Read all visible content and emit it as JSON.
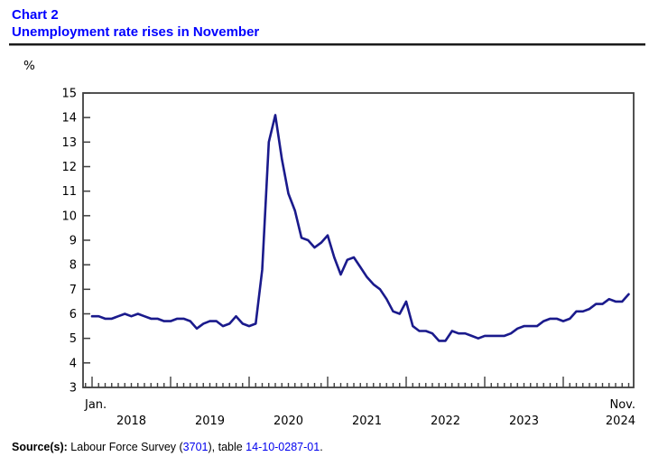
{
  "header": {
    "chart_label": "Chart 2",
    "title": "Unemployment rate rises in November"
  },
  "colors": {
    "title_blue": "#0000ff",
    "link_blue": "#0000ee",
    "line_navy": "#1a1a8c",
    "axis_gray": "#3f3f3f",
    "text_black": "#000000"
  },
  "chart_data": {
    "type": "line",
    "title": "Unemployment rate rises in November",
    "unit_label": "%",
    "ylabel": "%",
    "xlabel": "",
    "ylim": [
      3,
      15
    ],
    "y_ticks": [
      3,
      4,
      5,
      6,
      7,
      8,
      9,
      10,
      11,
      12,
      13,
      14,
      15
    ],
    "grid": false,
    "legend": "none",
    "frequency": "monthly",
    "start_month": "2018-01",
    "end_month": "2024-11",
    "x_first_tick_label": "Jan.",
    "x_last_tick_label": "Nov.",
    "year_labels": [
      "2018",
      "2019",
      "2020",
      "2021",
      "2022",
      "2023",
      "2024"
    ],
    "series": [
      {
        "name": "Unemployment rate",
        "color": "#1a1a8c",
        "values": [
          5.9,
          5.9,
          5.8,
          5.8,
          5.9,
          6.0,
          5.9,
          6.0,
          5.9,
          5.8,
          5.8,
          5.7,
          5.7,
          5.8,
          5.8,
          5.7,
          5.4,
          5.6,
          5.7,
          5.7,
          5.5,
          5.6,
          5.9,
          5.6,
          5.5,
          5.6,
          7.8,
          13.0,
          14.1,
          12.3,
          10.9,
          10.2,
          9.1,
          9.0,
          8.7,
          8.9,
          9.2,
          8.3,
          7.6,
          8.2,
          8.3,
          7.9,
          7.5,
          7.2,
          7.0,
          6.6,
          6.1,
          6.0,
          6.5,
          5.5,
          5.3,
          5.3,
          5.2,
          4.9,
          4.9,
          5.3,
          5.2,
          5.2,
          5.1,
          5.0,
          5.1,
          5.1,
          5.1,
          5.1,
          5.2,
          5.4,
          5.5,
          5.5,
          5.5,
          5.7,
          5.8,
          5.8,
          5.7,
          5.8,
          6.1,
          6.1,
          6.2,
          6.4,
          6.4,
          6.6,
          6.5,
          6.5,
          6.8
        ]
      }
    ]
  },
  "footer": {
    "source_label": "Source(s):",
    "prefix": " Labour Force Survey (",
    "survey_link": "3701",
    "middle": "), table ",
    "table_link": "14-10-0287-01",
    "suffix": "."
  }
}
